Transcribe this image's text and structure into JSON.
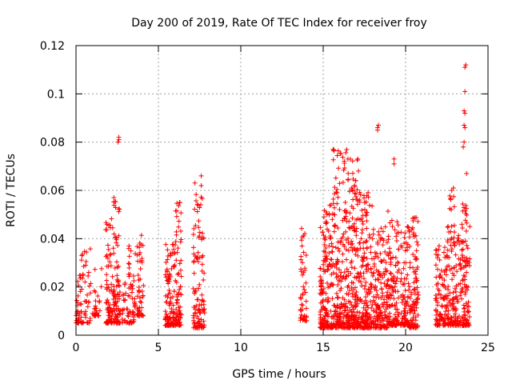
{
  "chart_data": {
    "type": "scatter",
    "title": "Day 200 of 2019, Rate Of TEC Index for receiver froy",
    "xlabel": "GPS time / hours",
    "ylabel": "ROTI / TECUs",
    "xlim": [
      0,
      25
    ],
    "ylim": [
      0,
      0.12
    ],
    "x_ticks": [
      0,
      5,
      10,
      15,
      20,
      25
    ],
    "y_ticks": [
      0,
      0.02,
      0.04,
      0.06,
      0.08,
      0.1,
      0.12
    ],
    "x_tick_labels": [
      "0",
      "5",
      "10",
      "15",
      "20",
      "25"
    ],
    "y_tick_labels": [
      "0",
      "0.02",
      "0.04",
      "0.06",
      "0.08",
      "0.1",
      "0.12"
    ],
    "grid": true,
    "marker": "+",
    "color": "#ff0000",
    "clusters": [
      {
        "x": [
          0.0,
          0.3
        ],
        "base": 0.005,
        "max": 0.025,
        "density": 30
      },
      {
        "x": [
          0.3,
          0.9
        ],
        "base": 0.005,
        "max": 0.036,
        "density": 45
      },
      {
        "x": [
          1.0,
          1.6
        ],
        "base": 0.008,
        "max": 0.028,
        "density": 30
      },
      {
        "x": [
          1.8,
          2.2
        ],
        "base": 0.005,
        "max": 0.05,
        "density": 70
      },
      {
        "x": [
          2.2,
          2.7
        ],
        "base": 0.005,
        "max": 0.056,
        "density": 90
      },
      {
        "x": [
          2.8,
          3.6
        ],
        "base": 0.005,
        "max": 0.04,
        "density": 70
      },
      {
        "x": [
          3.7,
          4.1
        ],
        "base": 0.008,
        "max": 0.042,
        "density": 50
      },
      {
        "x": [
          5.4,
          6.0
        ],
        "base": 0.004,
        "max": 0.038,
        "density": 110
      },
      {
        "x": [
          6.0,
          6.4
        ],
        "base": 0.004,
        "max": 0.056,
        "density": 80
      },
      {
        "x": [
          7.1,
          7.8
        ],
        "base": 0.003,
        "max": 0.066,
        "density": 110
      },
      {
        "x": [
          13.6,
          14.0
        ],
        "base": 0.006,
        "max": 0.045,
        "density": 50
      },
      {
        "x": [
          14.8,
          15.6
        ],
        "base": 0.003,
        "max": 0.054,
        "density": 170
      },
      {
        "x": [
          15.6,
          16.5
        ],
        "base": 0.003,
        "max": 0.077,
        "density": 200
      },
      {
        "x": [
          16.5,
          17.2
        ],
        "base": 0.003,
        "max": 0.073,
        "density": 170
      },
      {
        "x": [
          17.2,
          18.0
        ],
        "base": 0.003,
        "max": 0.06,
        "density": 170
      },
      {
        "x": [
          18.0,
          18.9
        ],
        "base": 0.003,
        "max": 0.045,
        "density": 160
      },
      {
        "x": [
          18.9,
          19.6
        ],
        "base": 0.004,
        "max": 0.052,
        "density": 120
      },
      {
        "x": [
          19.7,
          20.2
        ],
        "base": 0.004,
        "max": 0.045,
        "density": 80
      },
      {
        "x": [
          20.2,
          20.8
        ],
        "base": 0.003,
        "max": 0.05,
        "density": 110
      },
      {
        "x": [
          21.8,
          22.5
        ],
        "base": 0.004,
        "max": 0.04,
        "density": 100
      },
      {
        "x": [
          22.5,
          23.0
        ],
        "base": 0.004,
        "max": 0.06,
        "density": 90
      },
      {
        "x": [
          23.0,
          23.4
        ],
        "base": 0.004,
        "max": 0.045,
        "density": 50
      },
      {
        "x": [
          23.4,
          23.9
        ],
        "base": 0.004,
        "max": 0.055,
        "density": 100
      }
    ],
    "outliers": [
      {
        "x": 2.6,
        "y": 0.081
      },
      {
        "x": 2.6,
        "y": 0.082
      },
      {
        "x": 2.55,
        "y": 0.08
      },
      {
        "x": 18.3,
        "y": 0.086
      },
      {
        "x": 18.35,
        "y": 0.087
      },
      {
        "x": 18.3,
        "y": 0.085
      },
      {
        "x": 19.3,
        "y": 0.071
      },
      {
        "x": 19.3,
        "y": 0.073
      },
      {
        "x": 15.6,
        "y": 0.077
      },
      {
        "x": 16.5,
        "y": 0.073
      },
      {
        "x": 17.1,
        "y": 0.073
      },
      {
        "x": 7.6,
        "y": 0.066
      },
      {
        "x": 7.6,
        "y": 0.062
      },
      {
        "x": 23.6,
        "y": 0.111
      },
      {
        "x": 23.65,
        "y": 0.112
      },
      {
        "x": 23.6,
        "y": 0.101
      },
      {
        "x": 23.55,
        "y": 0.093
      },
      {
        "x": 23.6,
        "y": 0.092
      },
      {
        "x": 23.55,
        "y": 0.087
      },
      {
        "x": 23.6,
        "y": 0.086
      },
      {
        "x": 23.5,
        "y": 0.078
      },
      {
        "x": 23.55,
        "y": 0.08
      },
      {
        "x": 23.7,
        "y": 0.067
      },
      {
        "x": 22.8,
        "y": 0.06
      },
      {
        "x": 22.9,
        "y": 0.061
      },
      {
        "x": 6.3,
        "y": 0.055
      },
      {
        "x": 2.3,
        "y": 0.057
      }
    ]
  }
}
